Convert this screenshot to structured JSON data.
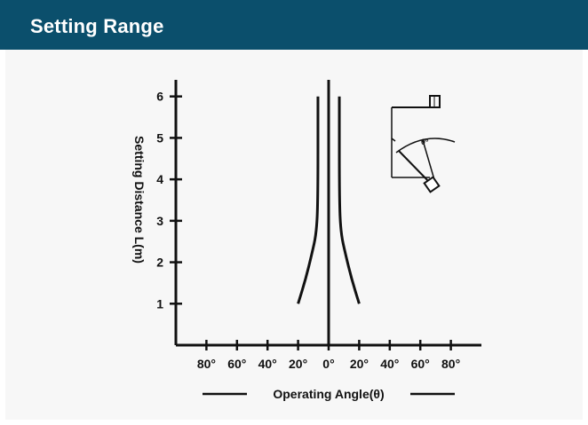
{
  "header": {
    "title": "Setting Range"
  },
  "chart_data": {
    "type": "line",
    "title": "Setting Range",
    "xlabel": "Operating Angle(θ)",
    "ylabel": "Setting Distance L(m)",
    "xlim": [
      -100,
      100
    ],
    "ylim": [
      0,
      6.4
    ],
    "x_ticks": [
      -80,
      -60,
      -40,
      -20,
      0,
      20,
      40,
      60,
      80
    ],
    "x_tick_labels": [
      "80°",
      "60°",
      "40°",
      "20°",
      "0°",
      "20°",
      "40°",
      "60°",
      "80°"
    ],
    "y_ticks": [
      1,
      2,
      3,
      4,
      5,
      6
    ],
    "y_tick_labels": [
      "1",
      "2",
      "3",
      "4",
      "5",
      "6"
    ],
    "grid": false,
    "series": [
      {
        "x": [
          -20,
          -15,
          -11,
          -8,
          -7,
          -7
        ],
        "y": [
          1,
          1.6,
          2.2,
          2.7,
          3.5,
          6
        ]
      },
      {
        "x": [
          20,
          15,
          11,
          8,
          7,
          7
        ],
        "y": [
          1,
          1.6,
          2.2,
          2.7,
          3.5,
          6
        ]
      }
    ],
    "colors": {
      "line": "#111111",
      "header": "#0b4f6c"
    }
  },
  "inset": {
    "angle_label": "θ°"
  }
}
